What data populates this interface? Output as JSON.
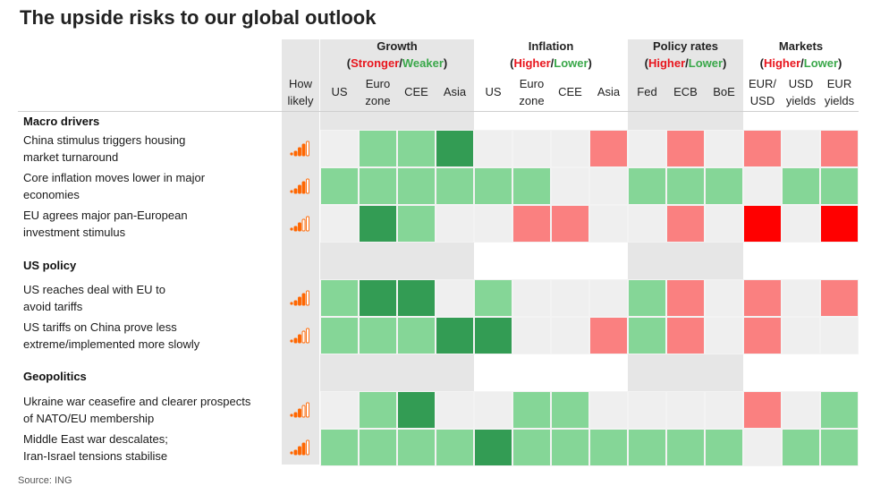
{
  "title": "The upside risks to our global outlook",
  "source": "Source: ING",
  "how_likely_label": [
    "How",
    "likely"
  ],
  "colors": {
    "strong_green": "#339c54",
    "light_green": "#85d697",
    "light_red": "#fa8080",
    "strong_red": "#ff0000",
    "none": "#efefef",
    "panel": "#e6e6e6",
    "signal": "#ff6600"
  },
  "groups": [
    {
      "name": "Growth",
      "pos": "Stronger",
      "neg": "Weaker"
    },
    {
      "name": "Inflation",
      "pos": "Higher",
      "neg": "Lower"
    },
    {
      "name": "Policy rates",
      "pos": "Higher",
      "neg": "Lower"
    },
    {
      "name": "Markets",
      "pos": "Higher",
      "neg": "Lower"
    }
  ],
  "columns": [
    [
      "US"
    ],
    [
      "Euro",
      "zone"
    ],
    [
      "CEE"
    ],
    [
      "Asia"
    ],
    [
      "US"
    ],
    [
      "Euro",
      "zone"
    ],
    [
      "CEE"
    ],
    [
      "Asia"
    ],
    [
      "Fed"
    ],
    [
      "ECB"
    ],
    [
      "BoE"
    ],
    [
      "EUR/",
      "USD"
    ],
    [
      "USD",
      "yields"
    ],
    [
      "EUR",
      "yields"
    ]
  ],
  "chart_data": {
    "type": "heatmap",
    "title": "The upside risks to our global outlook",
    "legend": {
      "SG": "strong green",
      "G": "light green",
      "R": "light red",
      "RR": "strong red",
      "": "no impact"
    },
    "sections": [
      {
        "name": "Macro drivers",
        "rows": [
          {
            "lines": [
              "China stimulus triggers housing",
              "market turnaround"
            ],
            "likelihood": 3,
            "cells": [
              "",
              "G",
              "G",
              "SG",
              "",
              "",
              "",
              "R",
              "",
              "R",
              "",
              "R",
              "",
              "R"
            ]
          },
          {
            "lines": [
              "Core inflation moves lower in major",
              "economies"
            ],
            "likelihood": 3,
            "cells": [
              "G",
              "G",
              "G",
              "G",
              "G",
              "G",
              "",
              "",
              "G",
              "G",
              "G",
              "",
              "G",
              "G"
            ]
          },
          {
            "lines": [
              "EU agrees major pan-European",
              "investment stimulus"
            ],
            "likelihood": 2,
            "cells": [
              "",
              "SG",
              "G",
              "",
              "",
              "R",
              "R",
              "",
              "",
              "R",
              "",
              "RR",
              "",
              "RR"
            ]
          }
        ]
      },
      {
        "name": "US policy",
        "rows": [
          {
            "lines": [
              "US reaches deal with EU to",
              "avoid tariffs"
            ],
            "likelihood": 3,
            "cells": [
              "G",
              "SG",
              "SG",
              "",
              "G",
              "",
              "",
              "",
              "G",
              "R",
              "",
              "R",
              "",
              "R"
            ]
          },
          {
            "lines": [
              "US tariffs on China prove less",
              "extreme/implemented more slowly"
            ],
            "likelihood": 2,
            "cells": [
              "G",
              "G",
              "G",
              "SG",
              "SG",
              "",
              "",
              "R",
              "G",
              "R",
              "",
              "R",
              "",
              ""
            ]
          }
        ]
      },
      {
        "name": "Geopolitics",
        "rows": [
          {
            "lines": [
              "Ukraine war ceasefire and clearer prospects",
              "of NATO/EU membership"
            ],
            "likelihood": 2,
            "cells": [
              "",
              "G",
              "SG",
              "",
              "",
              "G",
              "G",
              "",
              "",
              "",
              "",
              "R",
              "",
              "G"
            ]
          },
          {
            "lines": [
              "Middle East war descalates;",
              "Iran-Israel tensions stabilise"
            ],
            "likelihood": 3,
            "cells": [
              "G",
              "G",
              "G",
              "G",
              "SG",
              "G",
              "G",
              "G",
              "G",
              "G",
              "G",
              "",
              "G",
              "G"
            ]
          }
        ]
      }
    ]
  }
}
